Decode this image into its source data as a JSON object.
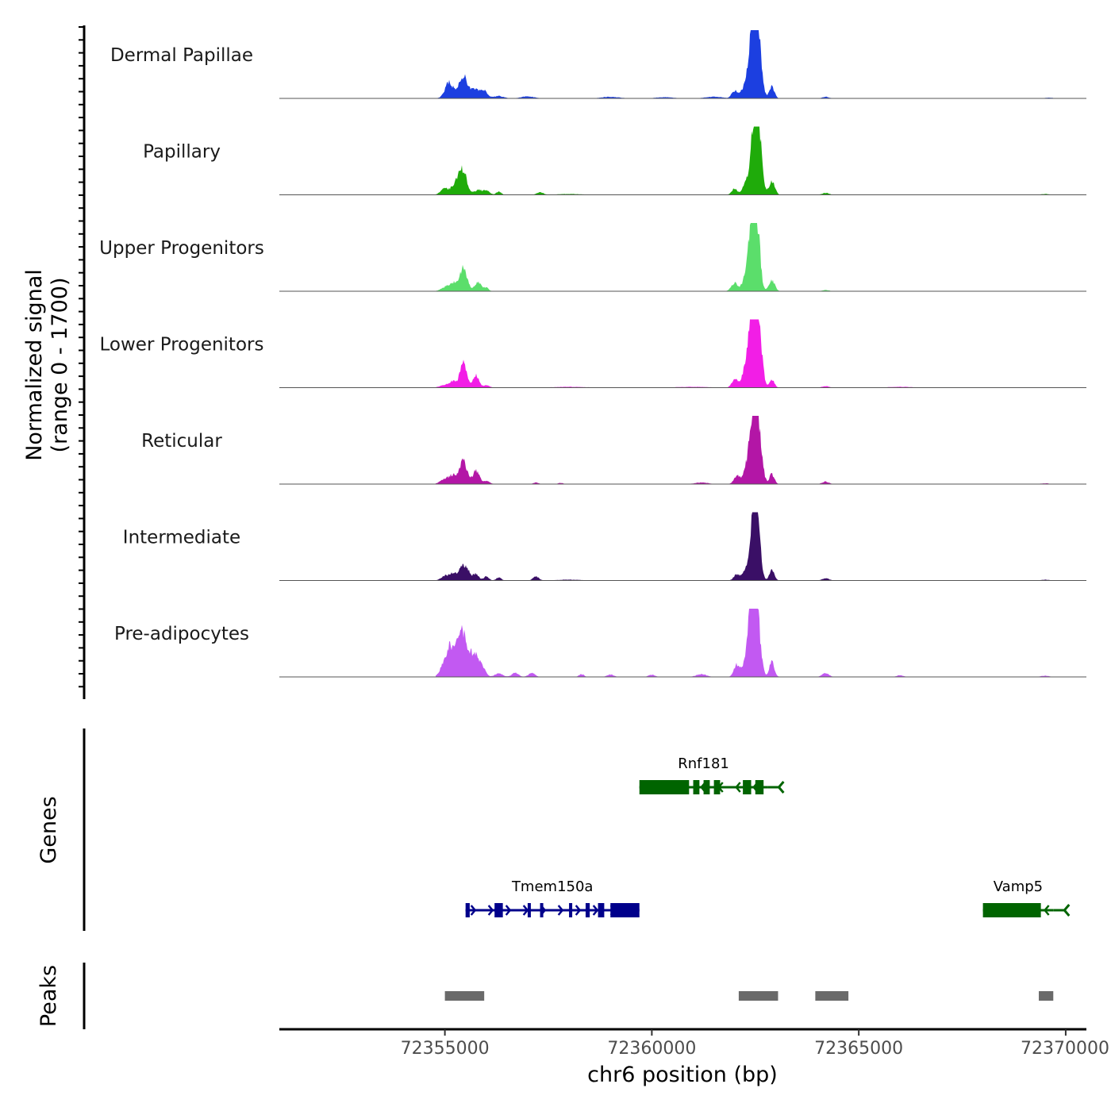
{
  "chart_data": {
    "type": "area",
    "title": "",
    "xlabel": "chr6 position (bp)",
    "ylabel": "Normalized signal",
    "ylabel_range": "(range 0 - 1700)",
    "xlim": [
      72351000,
      72370500
    ],
    "ylim": [
      0,
      1700
    ],
    "x_ticks": [
      72355000,
      72360000,
      72365000,
      72370000
    ],
    "x_tick_labels": [
      "72355000",
      "72360000",
      "72365000",
      "72370000"
    ],
    "signal_x_range": [
      72354780,
      72369700
    ],
    "tracks": [
      {
        "name": "Dermal Papillae",
        "color": "#1c3fe0",
        "peaks": [
          [
            72355100,
            390,
            100
          ],
          [
            72355450,
            550,
            110
          ],
          [
            72355750,
            220,
            90
          ],
          [
            72355950,
            180,
            80
          ],
          [
            72356300,
            60,
            120
          ],
          [
            72357000,
            50,
            150
          ],
          [
            72359000,
            40,
            200
          ],
          [
            72360300,
            30,
            200
          ],
          [
            72361500,
            40,
            200
          ],
          [
            72362000,
            180,
            70
          ],
          [
            72362250,
            260,
            100
          ],
          [
            72362450,
            1700,
            90
          ],
          [
            72362550,
            1400,
            90
          ],
          [
            72362900,
            300,
            60
          ],
          [
            72364200,
            40,
            80
          ],
          [
            72369600,
            20,
            100
          ]
        ]
      },
      {
        "name": "Papillary",
        "color": "#1fab0a",
        "peaks": [
          [
            72355000,
            150,
            100
          ],
          [
            72355300,
            330,
            110
          ],
          [
            72355450,
            480,
            90
          ],
          [
            72355800,
            120,
            90
          ],
          [
            72356000,
            100,
            80
          ],
          [
            72356300,
            80,
            60
          ],
          [
            72357300,
            60,
            80
          ],
          [
            72358000,
            20,
            300
          ],
          [
            72362000,
            150,
            70
          ],
          [
            72362300,
            320,
            90
          ],
          [
            72362480,
            1600,
            80
          ],
          [
            72362580,
            1300,
            80
          ],
          [
            72362900,
            330,
            70
          ],
          [
            72364200,
            50,
            80
          ],
          [
            72369500,
            20,
            100
          ]
        ]
      },
      {
        "name": "Upper Progenitors",
        "color": "#5bde6b",
        "peaks": [
          [
            72355000,
            100,
            100
          ],
          [
            72355200,
            200,
            90
          ],
          [
            72355450,
            570,
            90
          ],
          [
            72355800,
            220,
            80
          ],
          [
            72356000,
            80,
            60
          ],
          [
            72362000,
            200,
            80
          ],
          [
            72362300,
            450,
            90
          ],
          [
            72362420,
            1750,
            70
          ],
          [
            72362550,
            1500,
            70
          ],
          [
            72362900,
            270,
            70
          ],
          [
            72364200,
            30,
            80
          ]
        ]
      },
      {
        "name": "Lower Progenitors",
        "color": "#f21ee6",
        "peaks": [
          [
            72355000,
            60,
            120
          ],
          [
            72355200,
            150,
            90
          ],
          [
            72355450,
            650,
            80
          ],
          [
            72355750,
            300,
            70
          ],
          [
            72356000,
            60,
            80
          ],
          [
            72358000,
            20,
            400
          ],
          [
            72361000,
            20,
            400
          ],
          [
            72362000,
            200,
            70
          ],
          [
            72362300,
            600,
            100
          ],
          [
            72362450,
            1900,
            80
          ],
          [
            72362580,
            1500,
            80
          ],
          [
            72362900,
            200,
            60
          ],
          [
            72364200,
            40,
            80
          ],
          [
            72366000,
            20,
            300
          ]
        ]
      },
      {
        "name": "Reticular",
        "color": "#b316a6",
        "peaks": [
          [
            72355000,
            120,
            110
          ],
          [
            72355200,
            200,
            90
          ],
          [
            72355450,
            560,
            90
          ],
          [
            72355750,
            330,
            80
          ],
          [
            72356000,
            80,
            80
          ],
          [
            72357200,
            40,
            60
          ],
          [
            72357800,
            30,
            60
          ],
          [
            72361200,
            40,
            150
          ],
          [
            72362050,
            200,
            70
          ],
          [
            72362300,
            400,
            90
          ],
          [
            72362450,
            1550,
            80
          ],
          [
            72362580,
            1250,
            80
          ],
          [
            72362900,
            250,
            60
          ],
          [
            72364200,
            60,
            80
          ],
          [
            72369500,
            20,
            100
          ]
        ]
      },
      {
        "name": "Intermediate",
        "color": "#3a0f66",
        "peaks": [
          [
            72355000,
            120,
            90
          ],
          [
            72355200,
            180,
            80
          ],
          [
            72355420,
            320,
            90
          ],
          [
            72355550,
            180,
            70
          ],
          [
            72355750,
            170,
            70
          ],
          [
            72356000,
            100,
            60
          ],
          [
            72356300,
            80,
            60
          ],
          [
            72357200,
            100,
            70
          ],
          [
            72358000,
            20,
            300
          ],
          [
            72362050,
            150,
            70
          ],
          [
            72362300,
            300,
            90
          ],
          [
            72362450,
            1580,
            70
          ],
          [
            72362560,
            1300,
            70
          ],
          [
            72362900,
            250,
            60
          ],
          [
            72364200,
            60,
            80
          ],
          [
            72369500,
            20,
            100
          ]
        ]
      },
      {
        "name": "Pre-adipocytes",
        "color": "#c259f2",
        "peaks": [
          [
            72355000,
            380,
            100
          ],
          [
            72355150,
            550,
            90
          ],
          [
            72355300,
            500,
            90
          ],
          [
            72355450,
            1000,
            90
          ],
          [
            72355700,
            600,
            100
          ],
          [
            72355900,
            220,
            80
          ],
          [
            72356300,
            80,
            100
          ],
          [
            72356700,
            100,
            80
          ],
          [
            72357100,
            100,
            80
          ],
          [
            72358300,
            70,
            60
          ],
          [
            72359000,
            60,
            80
          ],
          [
            72360000,
            50,
            80
          ],
          [
            72361200,
            70,
            120
          ],
          [
            72362050,
            300,
            70
          ],
          [
            72362300,
            450,
            90
          ],
          [
            72362420,
            1650,
            80
          ],
          [
            72362550,
            1350,
            80
          ],
          [
            72362900,
            380,
            60
          ],
          [
            72364200,
            100,
            80
          ],
          [
            72366000,
            40,
            80
          ],
          [
            72369500,
            30,
            100
          ]
        ]
      }
    ],
    "genes": [
      {
        "name": "Rnf181",
        "color": "#006400",
        "strand": "-",
        "start": 72359700,
        "end": 72362800,
        "row": 1,
        "exons": [
          [
            72359700,
            72360900
          ],
          [
            72361000,
            72361150
          ],
          [
            72361250,
            72361400
          ],
          [
            72361500,
            72361650
          ],
          [
            72362200,
            72362400
          ],
          [
            72362500,
            72362700
          ]
        ]
      },
      {
        "name": "Tmem150a",
        "color": "#00008b",
        "strand": "+",
        "start": 72355500,
        "end": 72359700,
        "row": 2,
        "exons": [
          [
            72355500,
            72355600
          ],
          [
            72356200,
            72356400
          ],
          [
            72357000,
            72357050
          ],
          [
            72357300,
            72357350
          ],
          [
            72358000,
            72358050
          ],
          [
            72358400,
            72358500
          ],
          [
            72358700,
            72358850
          ],
          [
            72359000,
            72359700
          ]
        ]
      },
      {
        "name": "Vamp5",
        "color": "#006400",
        "strand": "-",
        "start": 72368000,
        "end": 72369700,
        "row": 2,
        "exons": [
          [
            72368000,
            72369400
          ]
        ]
      }
    ],
    "peaks": [
      [
        72355000,
        72355950
      ],
      [
        72362100,
        72363050
      ],
      [
        72363950,
        72364750
      ],
      [
        72369350,
        72369700
      ]
    ],
    "genes_label": "Genes",
    "peaks_label": "Peaks"
  }
}
